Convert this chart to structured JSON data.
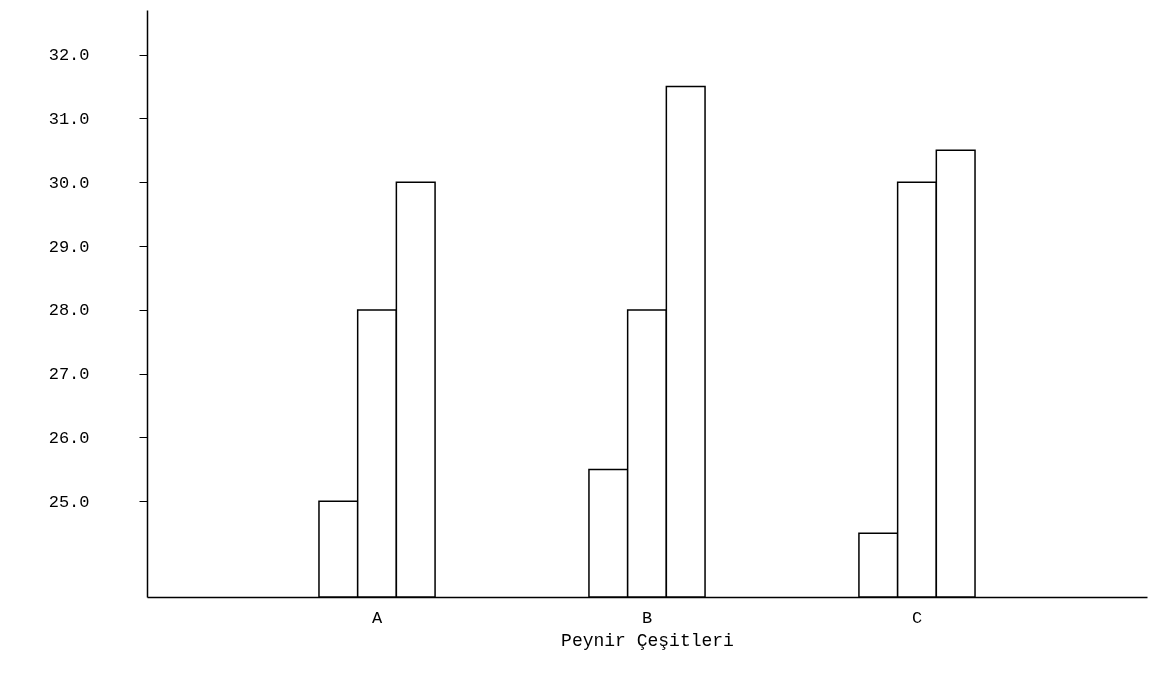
{
  "chart_data": {
    "type": "bar",
    "xlabel": "Peynir Çeşitleri",
    "categories": [
      "A",
      "B",
      "C"
    ],
    "series": [
      {
        "color": "#ffffff",
        "values": [
          25,
          25.5,
          24.5
        ]
      },
      {
        "color": "#ffffff",
        "values": [
          28,
          28,
          30
        ]
      },
      {
        "color": "#ffffff",
        "values": [
          30,
          31.5,
          30.5
        ]
      }
    ],
    "ylim": [
      23.5,
      32.7
    ],
    "yticks": [
      {
        "value": 25,
        "label": "25.0"
      },
      {
        "value": 26,
        "label": "26.0"
      },
      {
        "value": 27,
        "label": "27.0"
      },
      {
        "value": 28,
        "label": "28.0"
      },
      {
        "value": 29,
        "label": "29.0"
      },
      {
        "value": 30,
        "label": "30.0"
      },
      {
        "value": 31,
        "label": "31.0"
      },
      {
        "value": 32,
        "label": "32.0"
      }
    ],
    "grid": false
  }
}
